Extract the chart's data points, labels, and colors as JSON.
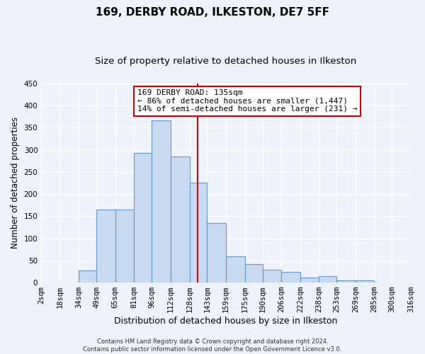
{
  "title": "169, DERBY ROAD, ILKESTON, DE7 5FF",
  "subtitle": "Size of property relative to detached houses in Ilkeston",
  "xlabel": "Distribution of detached houses by size in Ilkeston",
  "ylabel": "Number of detached properties",
  "bin_edges": [
    2,
    18,
    34,
    49,
    65,
    81,
    96,
    112,
    128,
    143,
    159,
    175,
    190,
    206,
    222,
    238,
    253,
    269,
    285,
    300,
    316
  ],
  "bar_values": [
    0,
    0,
    28,
    165,
    165,
    293,
    367,
    285,
    226,
    134,
    60,
    42,
    29,
    24,
    11,
    14,
    5,
    5,
    0,
    0
  ],
  "tick_labels": [
    "2sqm",
    "18sqm",
    "34sqm",
    "49sqm",
    "65sqm",
    "81sqm",
    "96sqm",
    "112sqm",
    "128sqm",
    "143sqm",
    "159sqm",
    "175sqm",
    "190sqm",
    "206sqm",
    "222sqm",
    "238sqm",
    "253sqm",
    "269sqm",
    "285sqm",
    "300sqm",
    "316sqm"
  ],
  "bar_color": "#c9d9f0",
  "bar_edge_color": "#6699cc",
  "vline_x": 135,
  "vline_color": "#cc0000",
  "ylim": [
    0,
    450
  ],
  "annotation_title": "169 DERBY ROAD: 135sqm",
  "annotation_line1": "← 86% of detached houses are smaller (1,447)",
  "annotation_line2": "14% of semi-detached houses are larger (231) →",
  "annotation_box_facecolor": "#ffffff",
  "annotation_box_edgecolor": "#cc0000",
  "footer1": "Contains HM Land Registry data © Crown copyright and database right 2024.",
  "footer2": "Contains public sector information licensed under the Open Government Licence v3.0.",
  "background_color": "#eef2fc",
  "grid_color": "#ffffff",
  "title_fontsize": 11,
  "subtitle_fontsize": 9.5,
  "tick_fontsize": 7.5,
  "ylabel_fontsize": 8.5,
  "xlabel_fontsize": 9,
  "annotation_fontsize": 8,
  "footer_fontsize": 6
}
